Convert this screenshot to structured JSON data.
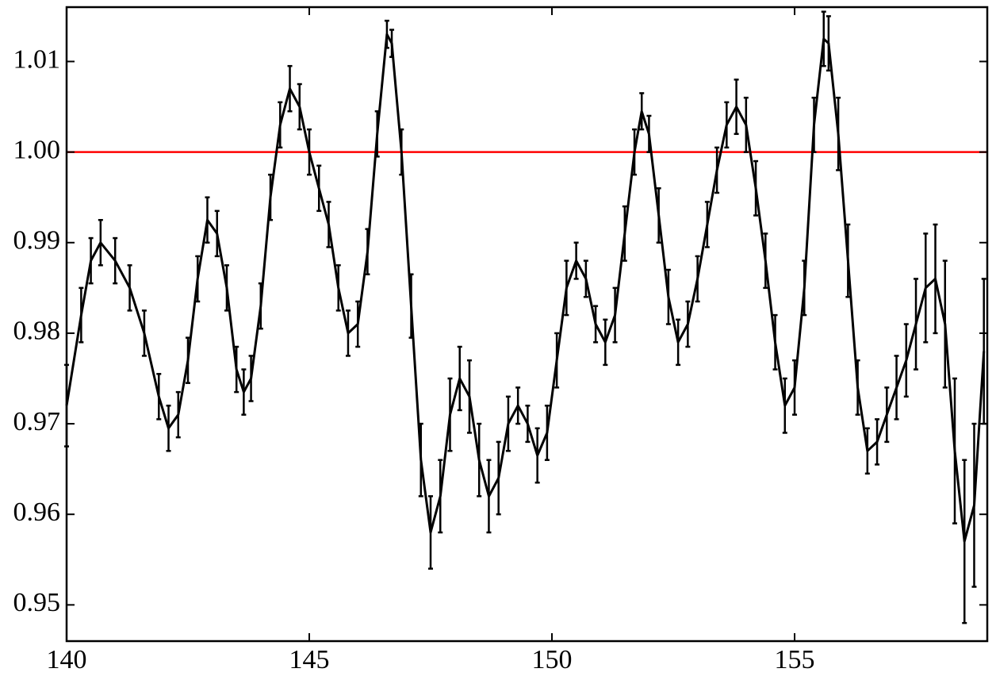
{
  "chart_data": {
    "type": "errorbar_line",
    "series": [
      {
        "color": "#000000",
        "x": [
          140.0,
          140.3,
          140.5,
          140.7,
          141.0,
          141.3,
          141.6,
          141.9,
          142.1,
          142.3,
          142.5,
          142.7,
          142.9,
          143.1,
          143.3,
          143.5,
          143.65,
          143.8,
          144.0,
          144.2,
          144.4,
          144.6,
          144.8,
          145.0,
          145.2,
          145.4,
          145.6,
          145.8,
          146.0,
          146.2,
          146.4,
          146.6,
          146.7,
          146.9,
          147.1,
          147.3,
          147.5,
          147.7,
          147.9,
          148.1,
          148.3,
          148.5,
          148.7,
          148.9,
          149.1,
          149.3,
          149.5,
          149.7,
          149.9,
          150.1,
          150.3,
          150.5,
          150.7,
          150.9,
          151.1,
          151.3,
          151.5,
          151.7,
          151.85,
          152.0,
          152.2,
          152.4,
          152.6,
          152.8,
          153.0,
          153.2,
          153.4,
          153.6,
          153.8,
          154.0,
          154.2,
          154.4,
          154.6,
          154.8,
          155.0,
          155.2,
          155.4,
          155.6,
          155.7,
          155.9,
          156.1,
          156.3,
          156.5,
          156.7,
          156.9,
          157.1,
          157.3,
          157.5,
          157.7,
          157.9,
          158.1,
          158.3,
          158.5,
          158.7,
          158.9
        ],
        "values": [
          0.972,
          0.982,
          0.988,
          0.99,
          0.988,
          0.985,
          0.98,
          0.973,
          0.9695,
          0.971,
          0.977,
          0.986,
          0.9925,
          0.991,
          0.985,
          0.976,
          0.9735,
          0.975,
          0.983,
          0.995,
          1.003,
          1.007,
          1.005,
          1.0,
          0.996,
          0.992,
          0.985,
          0.98,
          0.981,
          0.989,
          1.002,
          1.013,
          1.012,
          1.0,
          0.983,
          0.966,
          0.958,
          0.962,
          0.971,
          0.975,
          0.973,
          0.966,
          0.962,
          0.964,
          0.97,
          0.972,
          0.97,
          0.9665,
          0.969,
          0.977,
          0.985,
          0.988,
          0.986,
          0.981,
          0.979,
          0.982,
          0.991,
          1.0,
          1.0045,
          1.002,
          0.993,
          0.984,
          0.979,
          0.981,
          0.986,
          0.992,
          0.998,
          1.003,
          1.005,
          1.003,
          0.996,
          0.988,
          0.979,
          0.972,
          0.974,
          0.985,
          1.003,
          1.0125,
          1.012,
          1.002,
          0.988,
          0.974,
          0.967,
          0.968,
          0.971,
          0.974,
          0.977,
          0.981,
          0.985,
          0.986,
          0.981,
          0.967,
          0.957,
          0.961,
          0.978
        ],
        "errors": [
          0.0045,
          0.003,
          0.0025,
          0.0025,
          0.0025,
          0.0025,
          0.0025,
          0.0025,
          0.0025,
          0.0025,
          0.0025,
          0.0025,
          0.0025,
          0.0025,
          0.0025,
          0.0025,
          0.0025,
          0.0025,
          0.0025,
          0.0025,
          0.0025,
          0.0025,
          0.0025,
          0.0025,
          0.0025,
          0.0025,
          0.0025,
          0.0025,
          0.0025,
          0.0025,
          0.0025,
          0.0015,
          0.0015,
          0.0025,
          0.0035,
          0.004,
          0.004,
          0.004,
          0.004,
          0.0035,
          0.004,
          0.004,
          0.004,
          0.004,
          0.003,
          0.002,
          0.002,
          0.003,
          0.003,
          0.003,
          0.003,
          0.002,
          0.002,
          0.002,
          0.0025,
          0.003,
          0.003,
          0.0025,
          0.002,
          0.002,
          0.003,
          0.003,
          0.0025,
          0.0025,
          0.0025,
          0.0025,
          0.0025,
          0.0025,
          0.003,
          0.003,
          0.003,
          0.003,
          0.003,
          0.003,
          0.003,
          0.003,
          0.003,
          0.003,
          0.003,
          0.004,
          0.004,
          0.003,
          0.0025,
          0.0025,
          0.003,
          0.0035,
          0.004,
          0.005,
          0.006,
          0.006,
          0.007,
          0.008,
          0.009,
          0.009,
          0.008
        ]
      }
    ],
    "hline": {
      "value": 1.0,
      "color": "#ff0000"
    },
    "xlim": [
      140,
      158.97
    ],
    "ylim": [
      0.946,
      1.016
    ],
    "xticks": [
      140,
      145,
      150,
      155
    ],
    "yticks": [
      0.95,
      0.96,
      0.97,
      0.98,
      0.99,
      {
        "value": 1.0,
        "label": "1.00"
      },
      1.01
    ]
  }
}
